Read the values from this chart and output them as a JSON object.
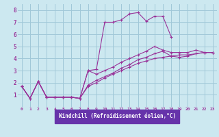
{
  "bg_color": "#cce8f0",
  "grid_color": "#a0c8d8",
  "line_color": "#993399",
  "xlabel": "Windchill (Refroidissement éolien,°C)",
  "xlim": [
    -0.5,
    23.5
  ],
  "ylim": [
    0,
    8.5
  ],
  "xticks": [
    0,
    1,
    2,
    3,
    4,
    5,
    6,
    7,
    8,
    9,
    10,
    11,
    12,
    13,
    14,
    15,
    16,
    17,
    18,
    19,
    20,
    21,
    22,
    23
  ],
  "yticks": [
    1,
    2,
    3,
    4,
    5,
    6,
    7,
    8
  ],
  "series": [
    {
      "x": [
        0,
        1,
        2,
        3,
        4,
        5,
        6,
        7,
        8,
        9,
        10,
        11,
        12,
        13,
        14,
        15,
        16,
        17,
        18
      ],
      "y": [
        1.7,
        0.7,
        2.1,
        0.8,
        0.8,
        0.8,
        0.8,
        0.7,
        3.0,
        3.1,
        7.0,
        7.0,
        7.2,
        7.7,
        7.8,
        7.1,
        7.5,
        7.5,
        5.8
      ]
    },
    {
      "x": [
        0,
        1,
        2,
        3,
        4,
        5,
        6,
        7,
        8,
        9,
        10,
        11,
        12,
        13,
        14,
        15,
        16,
        17,
        18,
        19,
        20,
        21,
        22,
        23
      ],
      "y": [
        1.7,
        0.7,
        2.1,
        0.8,
        0.8,
        0.8,
        0.8,
        0.7,
        1.7,
        2.0,
        2.4,
        2.7,
        3.0,
        3.3,
        3.6,
        3.8,
        4.0,
        4.1,
        4.2,
        4.3,
        4.3,
        4.4,
        4.5,
        4.5
      ]
    },
    {
      "x": [
        0,
        1,
        2,
        3,
        4,
        5,
        6,
        7,
        8,
        9,
        10,
        11,
        12,
        13,
        14,
        15,
        16,
        17,
        18,
        19,
        20,
        21,
        22,
        23
      ],
      "y": [
        1.7,
        0.7,
        2.1,
        0.8,
        0.8,
        0.8,
        0.8,
        0.7,
        3.0,
        2.7,
        3.0,
        3.3,
        3.7,
        4.0,
        4.3,
        4.6,
        5.0,
        4.7,
        4.5,
        4.5,
        4.5,
        4.7,
        4.5,
        4.5
      ]
    },
    {
      "x": [
        0,
        1,
        2,
        3,
        4,
        5,
        6,
        7,
        8,
        9,
        10,
        11,
        12,
        13,
        14,
        15,
        16,
        17,
        18,
        19,
        20,
        21,
        22,
        23
      ],
      "y": [
        1.7,
        0.7,
        2.1,
        0.8,
        0.8,
        0.8,
        0.8,
        0.7,
        1.8,
        2.2,
        2.5,
        2.8,
        3.2,
        3.5,
        3.9,
        4.1,
        4.4,
        4.6,
        4.2,
        4.1,
        4.2,
        4.4,
        4.5,
        4.5
      ]
    }
  ]
}
